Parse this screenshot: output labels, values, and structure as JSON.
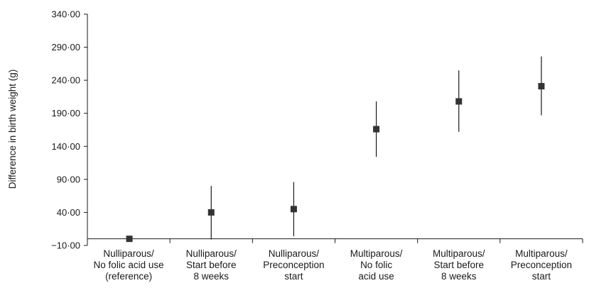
{
  "chart_data": {
    "type": "scatter",
    "title": "",
    "xlabel": "",
    "ylabel": "Difference in birth weight (g)",
    "ylim": [
      -10,
      340
    ],
    "y_ticks": [
      -10,
      40,
      90,
      140,
      190,
      240,
      290,
      340
    ],
    "y_tick_labels": [
      "−10·00",
      "40·00",
      "90·00",
      "140·00",
      "190·00",
      "240·00",
      "290·00",
      "340·00"
    ],
    "categories": [
      [
        "Nulliparous/",
        "No folic acid use",
        "(reference)"
      ],
      [
        "Nulliparous/",
        "Start before",
        "8 weeks"
      ],
      [
        "Nulliparous/",
        "Preconception",
        "start"
      ],
      [
        "Multiparous/",
        "No folic",
        "acid use"
      ],
      [
        "Multiparous/",
        "Start before",
        "8 weeks"
      ],
      [
        "Multiparous/",
        "Preconception",
        "start"
      ]
    ],
    "points": [
      {
        "value": 0,
        "lower": null,
        "upper": null
      },
      {
        "value": 40,
        "lower": -1,
        "upper": 80
      },
      {
        "value": 45,
        "lower": 4,
        "upper": 86
      },
      {
        "value": 166,
        "lower": 124,
        "upper": 208
      },
      {
        "value": 208,
        "lower": 162,
        "upper": 255
      },
      {
        "value": 231,
        "lower": 187,
        "upper": 276
      }
    ],
    "grid": false,
    "marker_color": "#333333",
    "axis_color": "#1a1a1a"
  }
}
